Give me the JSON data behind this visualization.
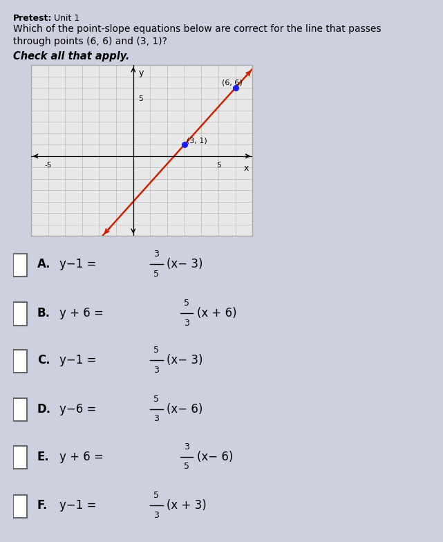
{
  "title_bold": "Pretest:",
  "title_normal": " Unit 1",
  "question_line1": "Which of the point-slope equations below are correct for the line that passes",
  "question_line2": "through points (6, 6) and (3, 1)?",
  "instruction": "Check all that apply.",
  "graph": {
    "xlim": [
      -6,
      7
    ],
    "ylim": [
      -7,
      8
    ],
    "point1": [
      6,
      6
    ],
    "point2": [
      3,
      1
    ],
    "line_color": "#cc2200",
    "point_color": "#1a1aff",
    "label1": "(6, 6)",
    "label2": "(3, 1)",
    "bg_color": "#e8e8e8",
    "border_color": "#aaaaaa"
  },
  "options": [
    {
      "letter": "A",
      "pre": "y−1 = ",
      "num": "3",
      "den": "5",
      "post": "(x− 3)"
    },
    {
      "letter": "B",
      "pre": "y + 6 = ",
      "num": "5",
      "den": "3",
      "post": "(x + 6)"
    },
    {
      "letter": "C",
      "pre": "y−1 = ",
      "num": "5",
      "den": "3",
      "post": "(x− 3)"
    },
    {
      "letter": "D",
      "pre": "y−6 = ",
      "num": "5",
      "den": "3",
      "post": "(x− 6)"
    },
    {
      "letter": "E",
      "pre": "y + 6 = ",
      "num": "3",
      "den": "5",
      "post": "(x− 6)"
    },
    {
      "letter": "F",
      "pre": "y−1 = ",
      "num": "5",
      "den": "3",
      "post": "(x + 3)"
    }
  ],
  "bg_page": "#cdd0de",
  "text_color": "#111111"
}
